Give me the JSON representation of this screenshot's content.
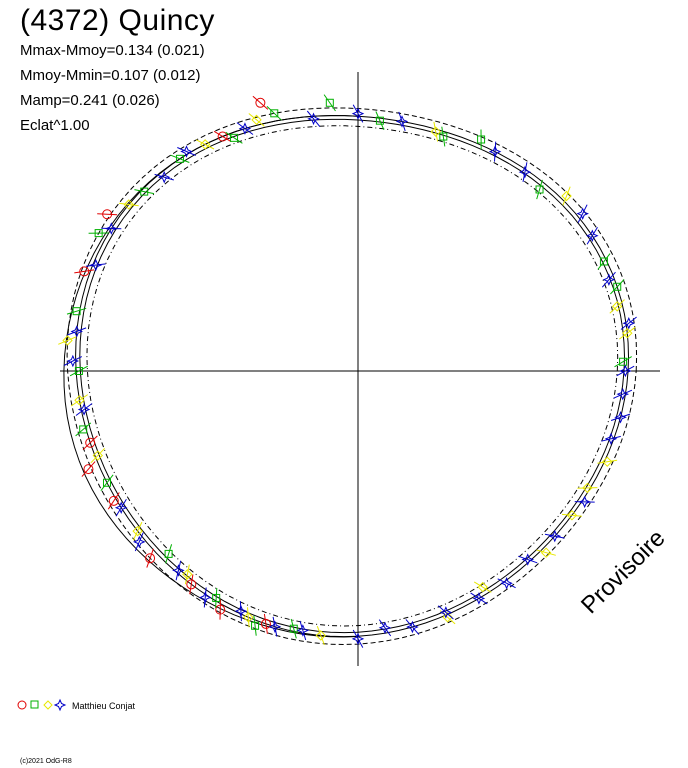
{
  "title": "(4372) Quincy",
  "stats": [
    "Mmax-Mmoy=0.134 (0.021)",
    "Mmoy-Mmin=0.107 (0.012)",
    "Mamp=0.241 (0.026)",
    "Eclat^1.00"
  ],
  "watermark": "Provisoire",
  "copyright": "(c)2021 OdG-R8",
  "legend": {
    "observer": "Matthieu Conjat",
    "symbols": [
      "circle",
      "square",
      "diamond",
      "star"
    ],
    "colors": [
      "#e00000",
      "#00b000",
      "#e8e800",
      "#0000c8"
    ]
  },
  "chart_data": {
    "type": "scatter",
    "projection": "polar",
    "title": "(4372) Quincy",
    "series": [
      {
        "symbol": "circle",
        "color": "#e00000",
        "points": [
          [
            110,
            1.08
          ],
          [
            120,
            1.0
          ],
          [
            148,
            1.04
          ],
          [
            160,
            1.02
          ],
          [
            195,
            1.0
          ],
          [
            200,
            1.04
          ],
          [
            208,
            1.01
          ],
          [
            222,
            1.03
          ],
          [
            232,
            1.0
          ],
          [
            240,
            1.02
          ],
          [
            250,
            1.0
          ]
        ]
      },
      {
        "symbol": "square",
        "color": "#00b000",
        "points": [
          [
            2,
            0.98
          ],
          [
            18,
            1.0
          ],
          [
            24,
            0.99
          ],
          [
            45,
            0.97
          ],
          [
            62,
            1.02
          ],
          [
            70,
            0.98
          ],
          [
            85,
            0.99
          ],
          [
            96,
            1.05
          ],
          [
            108,
            1.03
          ],
          [
            118,
            0.98
          ],
          [
            130,
            1.0
          ],
          [
            140,
            0.99
          ],
          [
            152,
            1.03
          ],
          [
            168,
            1.01
          ],
          [
            180,
            0.99
          ],
          [
            192,
            1.01
          ],
          [
            204,
            1.0
          ],
          [
            224,
            0.97
          ],
          [
            238,
            0.99
          ],
          [
            248,
            1.02
          ],
          [
            256,
            0.99
          ]
        ]
      },
      {
        "symbol": "diamond",
        "color": "#e8e800",
        "points": [
          [
            8,
            1.0
          ],
          [
            14,
            0.98
          ],
          [
            40,
            1.02
          ],
          [
            72,
            0.99
          ],
          [
            112,
            1.02
          ],
          [
            124,
            1.0
          ],
          [
            144,
            1.0
          ],
          [
            174,
            1.03
          ],
          [
            186,
            1.0
          ],
          [
            198,
            0.99
          ],
          [
            216,
            1.0
          ],
          [
            230,
            0.98
          ],
          [
            246,
            1.0
          ],
          [
            262,
            1.0
          ],
          [
            290,
            1.01
          ],
          [
            300,
            0.97
          ],
          [
            316,
            1.02
          ],
          [
            326,
            1.0
          ],
          [
            333,
            0.99
          ],
          [
            340,
            1.01
          ]
        ]
      },
      {
        "symbol": "star",
        "color": "#0000c8",
        "points": [
          [
            0,
            0.99
          ],
          [
            10,
            1.01
          ],
          [
            20,
            0.98
          ],
          [
            30,
            1.0
          ],
          [
            35,
            1.02
          ],
          [
            50,
            0.99
          ],
          [
            58,
            1.0
          ],
          [
            80,
            1.0
          ],
          [
            90,
            1.01
          ],
          [
            100,
            0.99
          ],
          [
            115,
            1.0
          ],
          [
            128,
            1.01
          ],
          [
            135,
            0.98
          ],
          [
            150,
            1.0
          ],
          [
            158,
            0.99
          ],
          [
            172,
            1.0
          ],
          [
            178,
            1.01
          ],
          [
            188,
            0.99
          ],
          [
            210,
            1.0
          ],
          [
            218,
            1.02
          ],
          [
            228,
            0.99
          ],
          [
            236,
            1.01
          ],
          [
            244,
            0.99
          ],
          [
            252,
            1.0
          ],
          [
            258,
            0.99
          ],
          [
            270,
            1.01
          ],
          [
            276,
            0.98
          ],
          [
            282,
            1.0
          ],
          [
            290,
            0.99
          ],
          [
            298,
            1.0
          ],
          [
            305,
            1.01
          ],
          [
            312,
            0.99
          ],
          [
            320,
            1.0
          ],
          [
            330,
            1.01
          ],
          [
            345,
            0.99
          ],
          [
            350,
            1.0
          ],
          [
            355,
            0.99
          ]
        ]
      }
    ],
    "model_curve": "mean light curve with ±sigma envelopes",
    "grid": false
  }
}
